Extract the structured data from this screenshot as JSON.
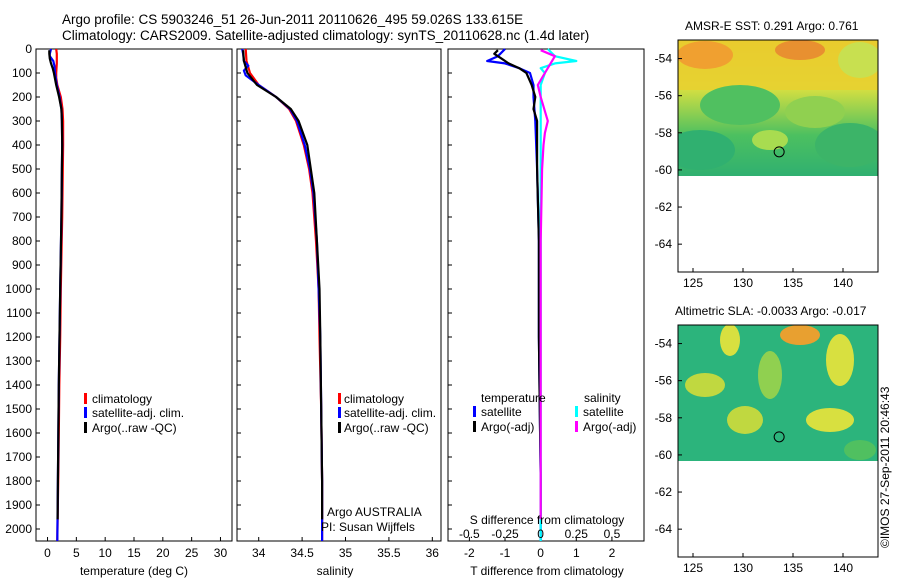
{
  "header": {
    "line1": "Argo profile: CS 5903246_51 26-Jun-2011 20110626_495 59.026S 133.615E",
    "line2": "Climatology: CARS2009. Satellite-adjusted climatology: synTS_20110628.nc (1.4d later)"
  },
  "colors": {
    "climatology": "#ff0000",
    "satellite": "#0000ff",
    "argo": "#000000",
    "salinity_satellite": "#00ffff",
    "salinity_argo": "#ff00ff"
  },
  "depth_ticks": [
    "0",
    "100",
    "200",
    "300",
    "400",
    "500",
    "600",
    "700",
    "800",
    "900",
    "1000",
    "1100",
    "1200",
    "1300",
    "1400",
    "1500",
    "1600",
    "1700",
    "1800",
    "1900",
    "2000"
  ],
  "chart_data": [
    {
      "type": "line",
      "title": "",
      "xlabel": "temperature (deg C)",
      "ylabel": "depth",
      "xlim": [
        -2,
        32
      ],
      "ylim": [
        2050,
        0
      ],
      "x_ticks": [
        "0",
        "5",
        "10",
        "15",
        "20",
        "25",
        "30"
      ],
      "x_tick_values": [
        0,
        5,
        10,
        15,
        20,
        25,
        30
      ],
      "legend": [
        "climatology",
        "satellite-adj. clim.",
        "Argo(..raw -QC)"
      ],
      "series": [
        {
          "name": "climatology",
          "color": "#ff0000",
          "depth": [
            0,
            20,
            40,
            60,
            80,
            100,
            120,
            150,
            200,
            250,
            300,
            400,
            500,
            600,
            700,
            800,
            1000,
            1200,
            1400,
            1600,
            1800,
            2050
          ],
          "values": [
            1.5,
            1.6,
            1.6,
            1.6,
            1.55,
            1.5,
            1.5,
            1.7,
            2.3,
            2.6,
            2.7,
            2.7,
            2.65,
            2.6,
            2.55,
            2.45,
            2.3,
            2.2,
            2.05,
            1.95,
            1.85,
            1.7
          ]
        },
        {
          "name": "satellite-adj. clim.",
          "color": "#0000ff",
          "depth": [
            0,
            20,
            30,
            50,
            70,
            100,
            150,
            200,
            250,
            300,
            400,
            500,
            700,
            1000,
            1400,
            1800,
            2050
          ],
          "values": [
            0.6,
            0.4,
            0.4,
            1.0,
            1.2,
            1.3,
            1.6,
            2.1,
            2.4,
            2.5,
            2.55,
            2.5,
            2.4,
            2.2,
            1.95,
            1.8,
            1.7
          ]
        },
        {
          "name": "Argo(..raw -QC)",
          "color": "#000000",
          "depth": [
            5,
            20,
            40,
            60,
            80,
            100,
            150,
            200,
            250,
            300,
            400,
            500,
            700,
            1000,
            1400,
            1800,
            1960
          ],
          "values": [
            0.3,
            0.3,
            0.4,
            0.6,
            0.9,
            1.1,
            1.5,
            2.0,
            2.4,
            2.5,
            2.55,
            2.5,
            2.4,
            2.2,
            1.95,
            1.8,
            1.75
          ]
        }
      ]
    },
    {
      "type": "line",
      "title": "",
      "xlabel": "salinity",
      "ylabel": "depth",
      "xlim": [
        33.75,
        36.1
      ],
      "ylim": [
        2050,
        0
      ],
      "x_ticks": [
        "34",
        "34.5",
        "35",
        "35.5",
        "36"
      ],
      "x_tick_values": [
        34,
        34.5,
        35,
        35.5,
        36
      ],
      "legend": [
        "climatology",
        "satellite-adj. clim.",
        "Argo(..raw -QC)"
      ],
      "annotation": [
        "Argo AUSTRALIA",
        "PI: Susan Wijffels"
      ],
      "series": [
        {
          "name": "climatology",
          "color": "#ff0000",
          "depth": [
            0,
            50,
            100,
            150,
            200,
            250,
            300,
            400,
            500,
            600,
            800,
            1000,
            1200,
            1500,
            1800,
            2050
          ],
          "values": [
            33.85,
            33.86,
            33.9,
            34.0,
            34.2,
            34.35,
            34.43,
            34.52,
            34.58,
            34.62,
            34.66,
            34.69,
            34.7,
            34.72,
            34.73,
            34.73
          ]
        },
        {
          "name": "satellite-adj. clim.",
          "color": "#0000ff",
          "depth": [
            0,
            20,
            50,
            70,
            90,
            110,
            150,
            200,
            250,
            300,
            400,
            500,
            600,
            800,
            1000,
            1200,
            1500,
            1800,
            2050
          ],
          "values": [
            33.81,
            33.82,
            33.83,
            33.88,
            33.83,
            33.85,
            34.0,
            34.2,
            34.36,
            34.44,
            34.53,
            34.59,
            34.63,
            34.67,
            34.69,
            34.71,
            34.72,
            34.73,
            34.73
          ]
        },
        {
          "name": "Argo(..raw -QC)",
          "color": "#000000",
          "depth": [
            5,
            50,
            100,
            150,
            200,
            250,
            300,
            400,
            500,
            600,
            800,
            1000,
            1200,
            1500,
            1800,
            1960
          ],
          "values": [
            33.82,
            33.83,
            33.87,
            33.98,
            34.2,
            34.37,
            34.46,
            34.56,
            34.6,
            34.64,
            34.67,
            34.7,
            34.71,
            34.72,
            34.73,
            34.73
          ]
        }
      ]
    },
    {
      "type": "line",
      "title": "",
      "xlabel": "T difference from climatology",
      "xlabel_top": "S difference from climatology",
      "ylabel": "depth",
      "xlim": [
        -2.6,
        2.9
      ],
      "ylim": [
        2050,
        0
      ],
      "x_ticks": [
        "-2",
        "-1",
        "0",
        "1",
        "2"
      ],
      "x_tick_values": [
        -2,
        -1,
        0,
        1,
        2
      ],
      "s_ticks": [
        "-0.5",
        "-0.25",
        "0",
        "0.25",
        "0.5"
      ],
      "s_tick_values": [
        -0.5,
        -0.25,
        0,
        0.25,
        0.5
      ],
      "legend_left_title": "temperature",
      "legend_right_title": "salinity",
      "legend": [
        "satellite",
        "Argo(-adj)",
        "satellite",
        "Argo(-adj)"
      ],
      "series": [
        {
          "name": "temperature satellite",
          "color": "#0000ff",
          "depth": [
            0,
            30,
            50,
            60,
            80,
            100,
            150,
            200,
            300,
            500,
            800,
            1200,
            1800,
            2050
          ],
          "values": [
            -1.0,
            -1.2,
            -1.5,
            -1.0,
            -0.6,
            -0.3,
            -0.2,
            -0.2,
            -0.15,
            -0.1,
            -0.05,
            -0.05,
            0,
            0
          ]
        },
        {
          "name": "temperature Argo(-adj)",
          "color": "#000000",
          "depth": [
            5,
            20,
            40,
            60,
            80,
            100,
            150,
            200,
            250,
            300,
            500,
            800,
            1200,
            1800,
            1960
          ],
          "values": [
            -1.2,
            -1.3,
            -1.1,
            -0.9,
            -0.6,
            -0.4,
            -0.25,
            -0.15,
            -0.2,
            -0.1,
            -0.1,
            -0.05,
            -0.05,
            0,
            0
          ]
        },
        {
          "name": "salinity satellite",
          "color": "#00ffff",
          "depth": [
            0,
            30,
            50,
            60,
            80,
            100,
            150,
            200,
            300,
            500,
            800,
            1200,
            1800,
            2050
          ],
          "values": [
            0.05,
            0.1,
            0.25,
            0.1,
            0.0,
            0.03,
            0.0,
            0.0,
            0.0,
            0.0,
            0.0,
            0.0,
            0.0,
            0.0
          ]
        },
        {
          "name": "salinity Argo(-adj)",
          "color": "#ff00ff",
          "depth": [
            5,
            30,
            60,
            100,
            150,
            200,
            300,
            350,
            400,
            500,
            800,
            1200,
            1800,
            1960
          ],
          "values": [
            0.0,
            0.1,
            0.07,
            0.03,
            -0.02,
            0.0,
            0.05,
            0.03,
            0.02,
            0.01,
            0.0,
            0.0,
            0.0,
            0.0
          ]
        }
      ]
    },
    {
      "type": "heatmap",
      "title": "AMSR-E SST: 0.291  Argo: 0.761",
      "x_ticks": [
        "125",
        "130",
        "135",
        "140"
      ],
      "x_tick_values": [
        125,
        130,
        135,
        140
      ],
      "y_ticks": [
        "-54",
        "-56",
        "-58",
        "-60",
        "-62",
        "-64"
      ],
      "y_tick_values": [
        -54,
        -56,
        -58,
        -60,
        -62,
        -64
      ],
      "xlim": [
        123.5,
        143.5
      ],
      "ylim": [
        -65.5,
        -53
      ],
      "data_lat_range": [
        -60,
        -53
      ],
      "float_location": [
        133.615,
        -59.026
      ]
    },
    {
      "type": "heatmap",
      "title": "Altimetric SLA: -0.0033  Argo: -0.017",
      "x_ticks": [
        "125",
        "130",
        "135",
        "140"
      ],
      "x_tick_values": [
        125,
        130,
        135,
        140
      ],
      "y_ticks": [
        "-54",
        "-56",
        "-58",
        "-60",
        "-62",
        "-64"
      ],
      "y_tick_values": [
        -54,
        -56,
        -58,
        -60,
        -62,
        -64
      ],
      "xlim": [
        123.5,
        143.5
      ],
      "ylim": [
        -65.5,
        -53
      ],
      "data_lat_range": [
        -60,
        -53
      ],
      "float_location": [
        133.615,
        -59.026
      ]
    }
  ],
  "footer": {
    "credit": "©IMOS 27-Sep-2011 20:46:43"
  }
}
